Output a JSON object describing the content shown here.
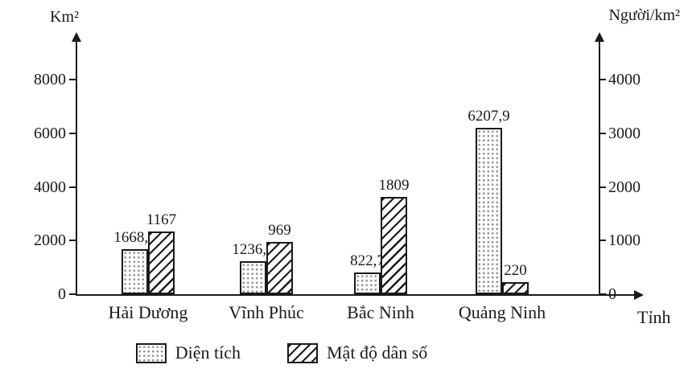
{
  "chart_data": {
    "type": "bar",
    "title": "",
    "categories": [
      "Hải Dương",
      "Vĩnh Phúc",
      "Bắc Ninh",
      "Quảng Ninh"
    ],
    "series": [
      {
        "name": "Diện tích",
        "axis": "left",
        "pattern": "dots",
        "values": [
          1668.3,
          1236.0,
          822.7,
          6207.9
        ],
        "value_labels": [
          "1668,3",
          "1236,0",
          "822,7",
          "6207,9"
        ]
      },
      {
        "name": "Mật độ dân số",
        "axis": "right",
        "pattern": "hatch",
        "values": [
          1167,
          969,
          1809,
          220
        ],
        "value_labels": [
          "1167",
          "969",
          "1809",
          "220"
        ]
      }
    ],
    "left_axis": {
      "title": "Km²",
      "ticks": [
        "0",
        "2000",
        "4000",
        "6000",
        "8000"
      ],
      "tick_values": [
        0,
        2000,
        4000,
        6000,
        8000
      ],
      "max_tick": 8000
    },
    "right_axis": {
      "title": "Người/km²",
      "ticks": [
        "0",
        "1000",
        "2000",
        "3000",
        "4000"
      ],
      "tick_values": [
        0,
        1000,
        2000,
        3000,
        4000
      ],
      "max_tick": 4000
    },
    "x_axis_title": "Tỉnh",
    "legend": [
      {
        "label": "Diện tích",
        "pattern": "dots"
      },
      {
        "label": "Mật độ dân số",
        "pattern": "hatch"
      }
    ],
    "grid": false,
    "legend_position": "bottom",
    "colors": {
      "ink": "#1a1a1a",
      "background": "#ffffff"
    }
  }
}
